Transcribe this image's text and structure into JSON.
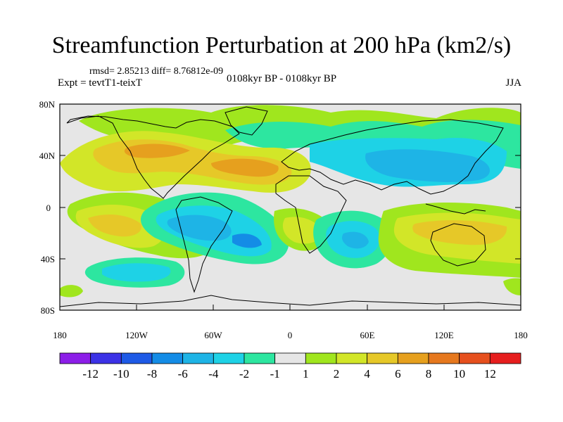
{
  "title": "Streamfunction Perturbation at 200 hPa (km2/s)",
  "stats": "rmsd= 2.85213 diff= 8.76812e-09",
  "experiment": "Expt = tevtT1-teixT",
  "period": "0108kyr BP - 0108kyr BP",
  "season": "JJA",
  "axes": {
    "lat_labels": [
      "80N",
      "40N",
      "0",
      "40S",
      "80S"
    ],
    "lon_labels": [
      "180",
      "120W",
      "60W",
      "0",
      "60E",
      "120E",
      "180"
    ]
  },
  "colorbar": {
    "labels": [
      "-12",
      "-10",
      "-8",
      "-6",
      "-4",
      "-2",
      "-1",
      "1",
      "2",
      "4",
      "6",
      "8",
      "10",
      "12"
    ],
    "colors": [
      "#8c1ee8",
      "#3c32e6",
      "#1e5ae6",
      "#148ce6",
      "#1eb4e6",
      "#1ed2e6",
      "#2de6a0",
      "#e6e6e6",
      "#a0e61e",
      "#d2e628",
      "#e6c828",
      "#e6a01e",
      "#e6781e",
      "#e6501e",
      "#e61e1e"
    ]
  },
  "palette": {
    "neutral": "#e6e6e6",
    "pos1": "#a0e61e",
    "pos2": "#d2e628",
    "pos3": "#e6c828",
    "pos4": "#e6a01e",
    "neg1": "#2de6a0",
    "neg2": "#1ed2e6",
    "neg3": "#1eb4e6",
    "neg4": "#148ce6"
  }
}
